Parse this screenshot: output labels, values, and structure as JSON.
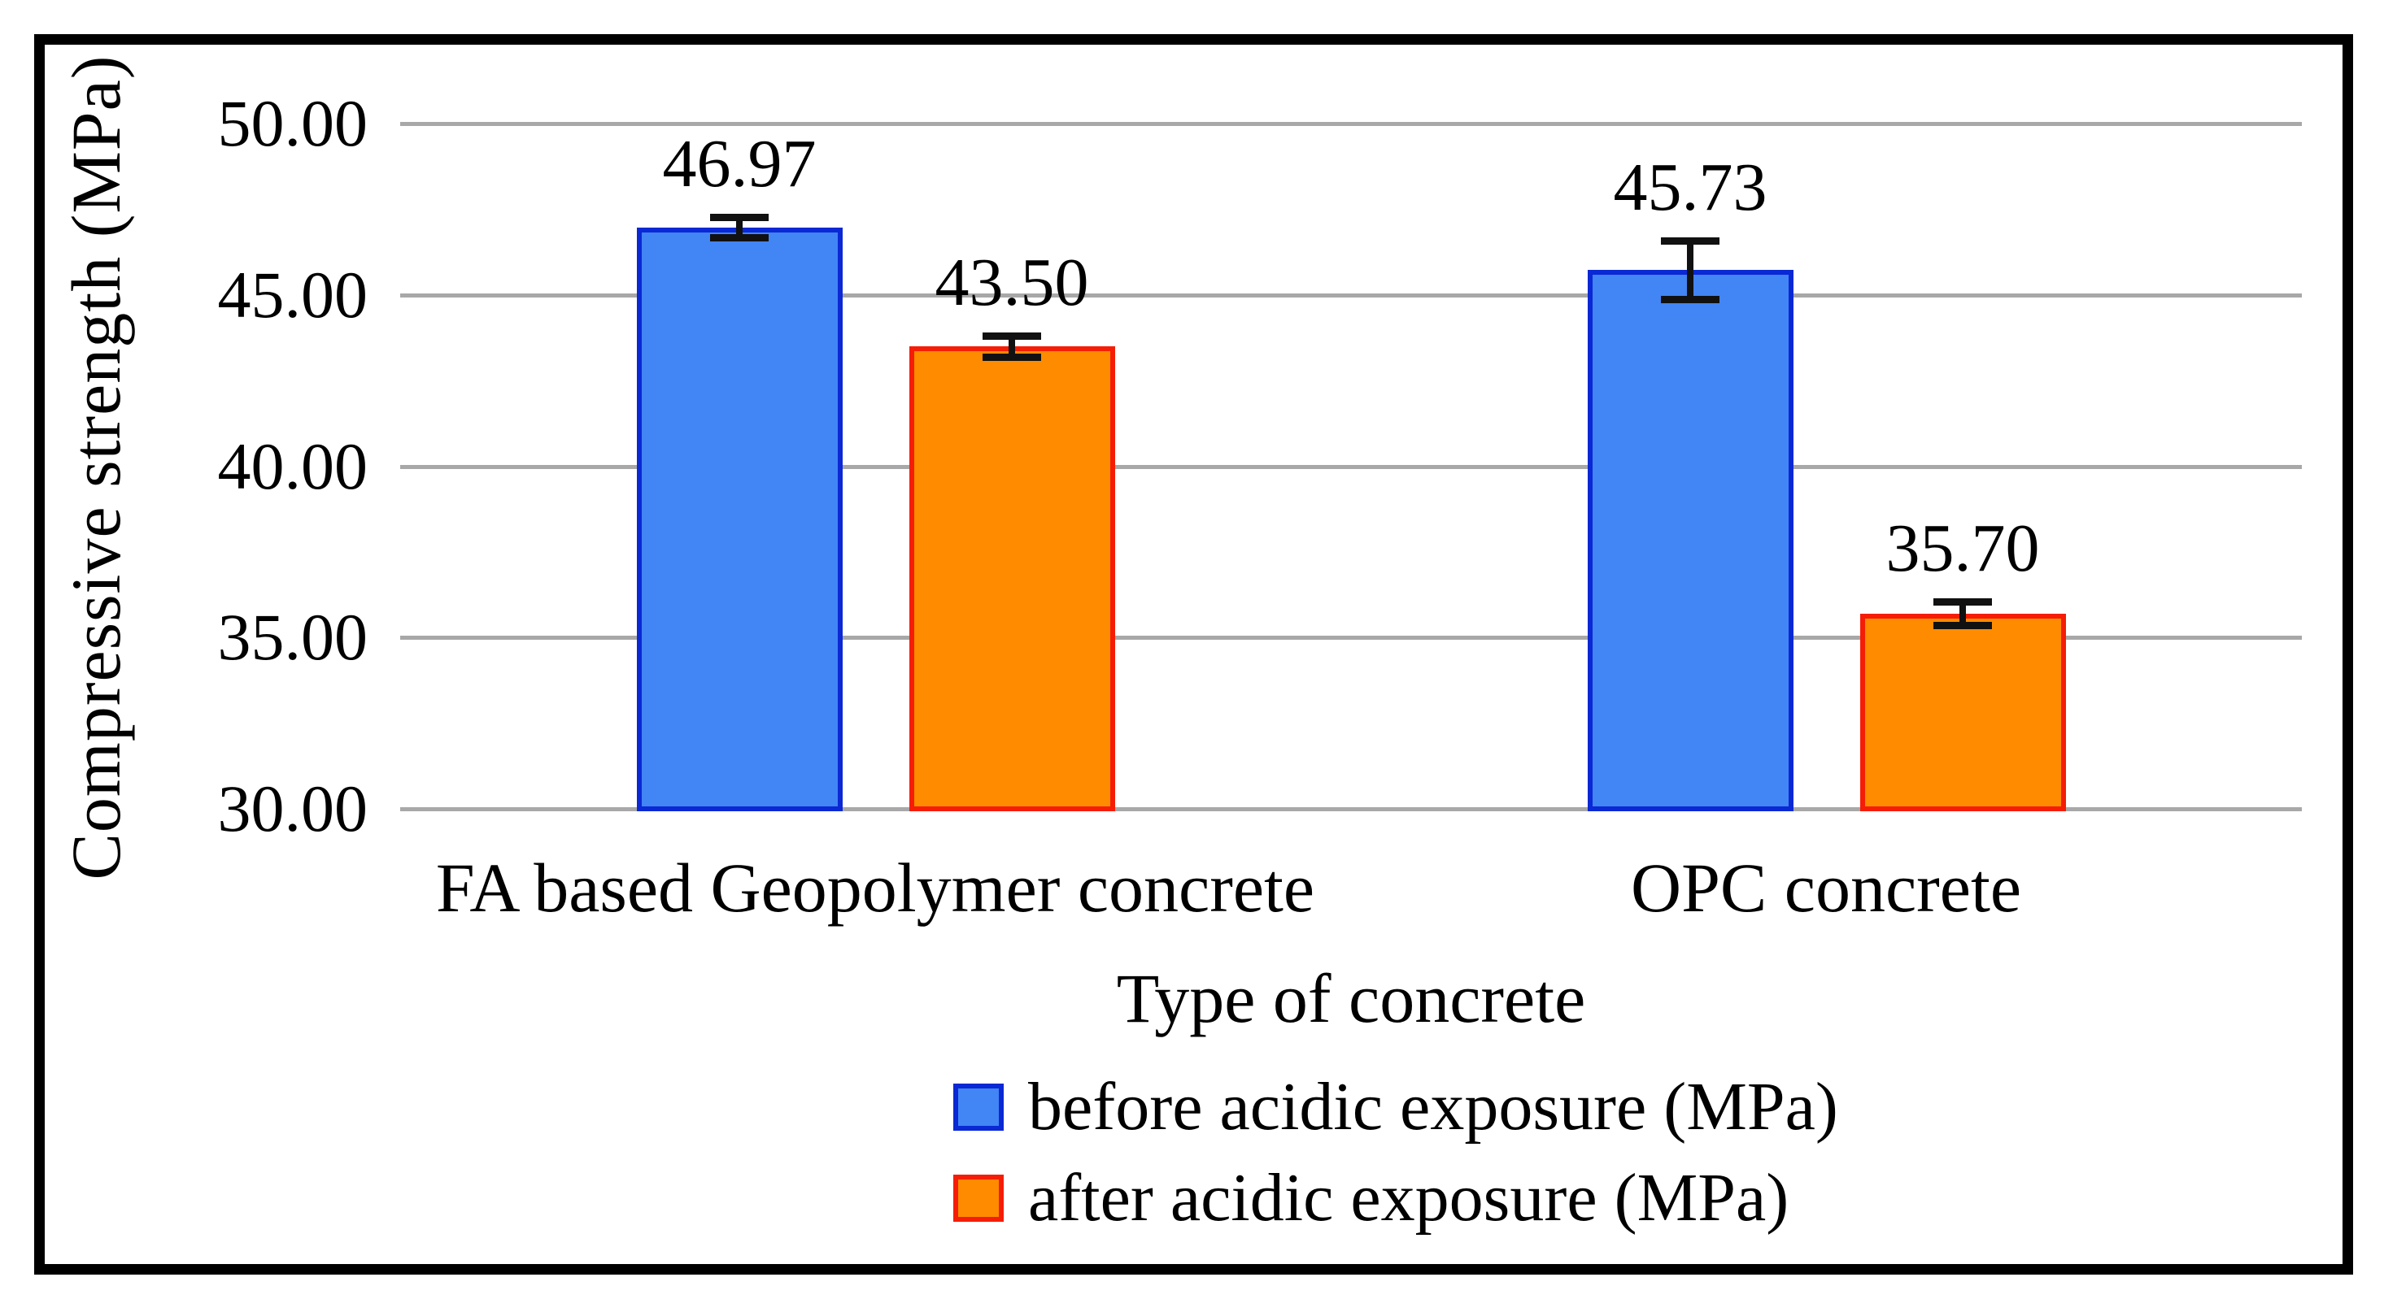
{
  "chart_data": {
    "type": "bar",
    "title": "",
    "xlabel": "Type of concrete",
    "ylabel": "Compressive strength (MPa)",
    "categories": [
      "FA based Geopolymer concrete",
      "OPC concrete"
    ],
    "series": [
      {
        "name": "before acidic exposure (MPa)",
        "values": [
          46.97,
          45.73
        ],
        "errors": [
          0.3,
          0.85
        ],
        "fill": "#4285F4",
        "border": "#0A28D4"
      },
      {
        "name": "after acidic exposure (MPa)",
        "values": [
          43.5,
          35.7
        ],
        "errors": [
          0.3,
          0.35
        ],
        "fill": "#FF8C00",
        "border": "#F51D05"
      }
    ],
    "data_labels": [
      "46.97",
      "43.50",
      "45.73",
      "35.70"
    ],
    "ylim": [
      30,
      50
    ],
    "yticks": [
      30,
      35,
      40,
      45,
      50
    ],
    "ytick_labels": [
      "30.00",
      "35.00",
      "40.00",
      "45.00",
      "50.00"
    ],
    "grid": "horizontal",
    "legend_position": "bottom"
  },
  "colors": {
    "background": "#FFFFFF",
    "frame": "#000000",
    "gridline": "#A8A8A8",
    "error_bar": "#111111",
    "text": "#000000"
  }
}
